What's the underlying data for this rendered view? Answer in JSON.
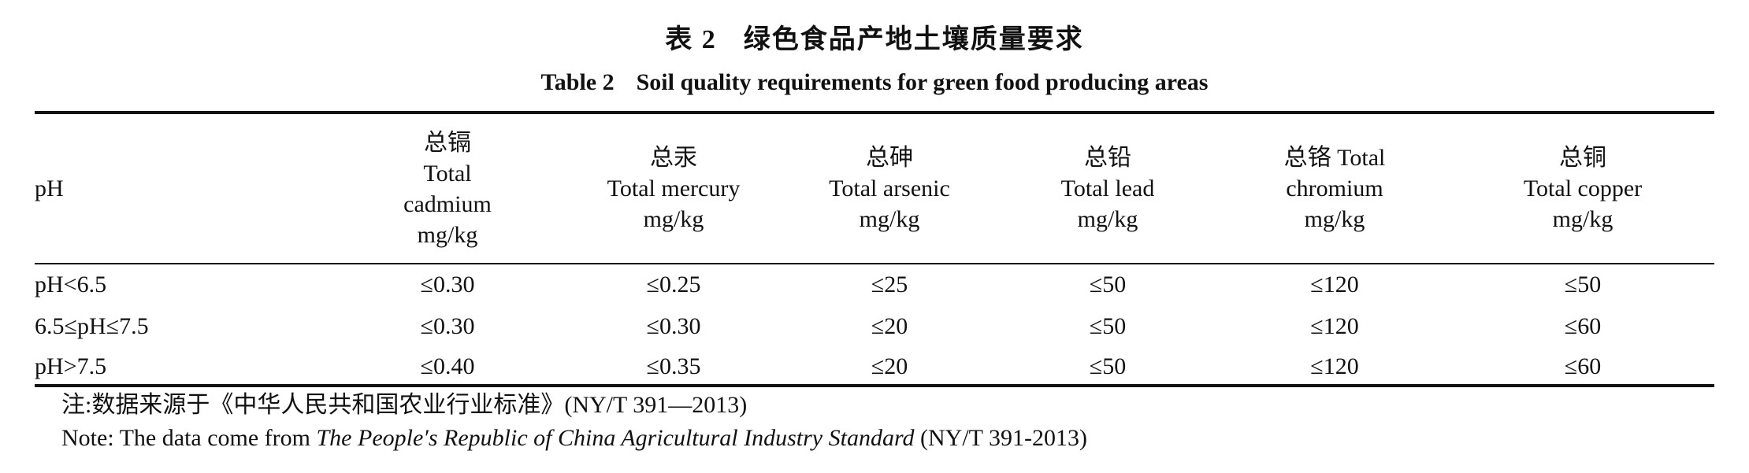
{
  "title": {
    "cn_number": "表 2",
    "cn_text": "绿色食品产地土壤质量要求",
    "en_number": "Table 2",
    "en_text": "Soil quality requirements for green food producing areas"
  },
  "table": {
    "ph_header": "pH",
    "columns": [
      {
        "lines": [
          "总镉",
          "Total",
          "cadmium",
          "mg/kg"
        ]
      },
      {
        "lines": [
          "总汞",
          "Total mercury",
          "mg/kg"
        ]
      },
      {
        "lines": [
          "总砷",
          "Total arsenic",
          "mg/kg"
        ]
      },
      {
        "lines": [
          "总铅",
          "Total lead",
          "mg/kg"
        ]
      },
      {
        "lines": [
          "总铬 Total",
          "chromium",
          "mg/kg"
        ]
      },
      {
        "lines": [
          "总铜",
          "Total copper",
          "mg/kg"
        ]
      }
    ],
    "rows": [
      {
        "ph": "pH<6.5",
        "values": [
          "≤0.30",
          "≤0.25",
          "≤25",
          "≤50",
          "≤120",
          "≤50"
        ]
      },
      {
        "ph": "6.5≤pH≤7.5",
        "values": [
          "≤0.30",
          "≤0.30",
          "≤20",
          "≤50",
          "≤120",
          "≤60"
        ]
      },
      {
        "ph": "pH>7.5",
        "values": [
          "≤0.40",
          "≤0.35",
          "≤20",
          "≤50",
          "≤120",
          "≤60"
        ]
      }
    ]
  },
  "notes": {
    "cn": "注:数据来源于《中华人民共和国农业行业标准》(NY/T 391—2013)",
    "en_prefix": "Note: The data come from ",
    "en_italic": "The People′s Republic of China Agricultural Industry Standard",
    "en_suffix": " (NY/T 391-2013)"
  }
}
